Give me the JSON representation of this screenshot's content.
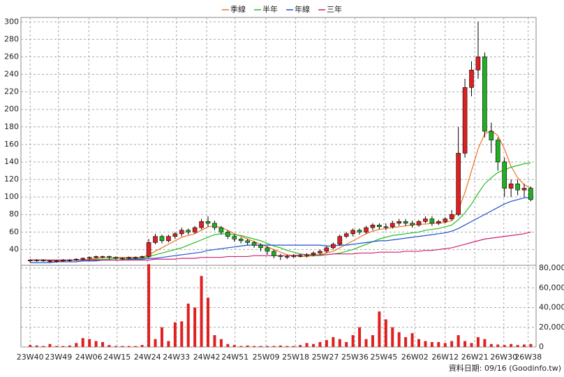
{
  "chart_data": {
    "type": "candlestick",
    "legend": "top",
    "grid": true,
    "up_color": "#e02020",
    "down_color": "#20b020",
    "xlim": [
      -1.4,
      76.8
    ],
    "xticks": [
      {
        "value": 0,
        "label": "23W40"
      },
      {
        "value": 4.3,
        "label": "23W49"
      },
      {
        "value": 8.9,
        "label": "24W06"
      },
      {
        "value": 13.2,
        "label": "24W15"
      },
      {
        "value": 17.8,
        "label": "24W24"
      },
      {
        "value": 22.2,
        "label": "24W33"
      },
      {
        "value": 26.8,
        "label": "24W42"
      },
      {
        "value": 31.1,
        "label": "24W51"
      },
      {
        "value": 35.8,
        "label": "25W09"
      },
      {
        "value": 40.3,
        "label": "25W18"
      },
      {
        "value": 44.8,
        "label": "25W27"
      },
      {
        "value": 49.3,
        "label": "25W36"
      },
      {
        "value": 53.7,
        "label": "25W45"
      },
      {
        "value": 58.4,
        "label": "26W02"
      },
      {
        "value": 63,
        "label": "26W12"
      },
      {
        "value": 67.5,
        "label": "26W21"
      },
      {
        "value": 71.9,
        "label": "26W30"
      },
      {
        "value": 75.6,
        "label": "26W38"
      }
    ],
    "ylim": [
      22,
      305
    ],
    "yticks": [
      40,
      60,
      80,
      100,
      120,
      140,
      160,
      180,
      200,
      220,
      240,
      260,
      280,
      300
    ],
    "open": [
      27,
      28,
      28,
      27,
      27,
      27,
      28,
      28,
      29,
      30,
      31,
      32,
      32,
      31,
      30,
      30,
      31,
      31,
      32,
      48,
      55,
      50,
      55,
      58,
      62,
      60,
      65,
      72,
      70,
      65,
      60,
      55,
      52,
      50,
      48,
      45,
      42,
      38,
      33,
      32,
      32,
      33,
      33,
      34,
      36,
      38,
      42,
      46,
      55,
      58,
      62,
      60,
      65,
      68,
      66,
      66,
      70,
      72,
      70,
      68,
      72,
      75,
      70,
      72,
      75,
      80,
      150,
      225,
      245,
      260,
      175,
      165,
      140,
      110,
      115,
      108,
      110
    ],
    "high": [
      29,
      29,
      29,
      28,
      28,
      29,
      29,
      30,
      31,
      32,
      33,
      33,
      33,
      32,
      31,
      32,
      32,
      33,
      52,
      58,
      57,
      57,
      60,
      65,
      64,
      67,
      75,
      78,
      73,
      67,
      62,
      57,
      54,
      52,
      50,
      47,
      44,
      40,
      35,
      34,
      35,
      35,
      36,
      38,
      40,
      44,
      48,
      57,
      60,
      64,
      64,
      67,
      70,
      70,
      70,
      73,
      75,
      75,
      73,
      74,
      78,
      78,
      74,
      77,
      85,
      180,
      235,
      255,
      300,
      265,
      185,
      168,
      145,
      120,
      120,
      115,
      112
    ],
    "low": [
      25,
      26,
      26,
      25,
      25,
      26,
      26,
      27,
      28,
      28,
      30,
      30,
      29,
      28,
      28,
      29,
      29,
      30,
      30,
      46,
      47,
      48,
      52,
      55,
      57,
      58,
      63,
      66,
      62,
      57,
      52,
      49,
      47,
      45,
      42,
      38,
      34,
      30,
      28,
      29,
      30,
      31,
      31,
      32,
      34,
      36,
      40,
      44,
      53,
      55,
      57,
      58,
      62,
      63,
      62,
      64,
      67,
      67,
      65,
      66,
      70,
      67,
      68,
      70,
      73,
      78,
      145,
      215,
      235,
      168,
      150,
      130,
      100,
      100,
      102,
      100,
      95
    ],
    "close": [
      28,
      28,
      27,
      27,
      27,
      28,
      28,
      29,
      30,
      31,
      32,
      32,
      31,
      30,
      30,
      31,
      31,
      32,
      48,
      55,
      50,
      55,
      58,
      62,
      60,
      65,
      72,
      70,
      65,
      60,
      55,
      52,
      50,
      48,
      45,
      42,
      38,
      33,
      32,
      32,
      33,
      33,
      34,
      36,
      38,
      42,
      46,
      55,
      58,
      62,
      60,
      65,
      68,
      66,
      66,
      70,
      72,
      70,
      68,
      72,
      75,
      70,
      72,
      75,
      80,
      150,
      225,
      245,
      260,
      175,
      165,
      140,
      110,
      115,
      108,
      110,
      97
    ],
    "volume": {
      "color": "#e02020",
      "ylim": [
        0,
        80000
      ],
      "yticks": [
        0,
        {
          "value": 20000,
          "label": "20,000"
        },
        {
          "value": 40000,
          "label": "40,000"
        },
        {
          "value": 60000,
          "label": "60,000"
        },
        {
          "value": 80000,
          "label": "80,000"
        }
      ],
      "values": [
        2000,
        1500,
        1000,
        3000,
        1000,
        1000,
        1500,
        4000,
        9000,
        8000,
        6000,
        5000,
        2000,
        1000,
        1000,
        1000,
        1000,
        2000,
        84000,
        8000,
        20000,
        6000,
        25000,
        26000,
        44000,
        40000,
        72000,
        50000,
        12000,
        8000,
        3000,
        2000,
        1000,
        1500,
        1000,
        1000,
        1000,
        1000,
        1500,
        1000,
        1000,
        2000,
        4000,
        3000,
        5000,
        7000,
        10000,
        8000,
        5000,
        12000,
        20000,
        8000,
        12000,
        36000,
        28000,
        20000,
        15000,
        10000,
        14000,
        8000,
        6000,
        5000,
        5000,
        4000,
        6000,
        12000,
        6000,
        4000,
        10000,
        8000,
        3000,
        2500,
        2000,
        3000,
        2000,
        2500,
        3000
      ]
    },
    "series": [
      {
        "name": "季線",
        "color": "#f07020",
        "values": [
          28,
          28,
          28,
          27,
          27,
          27,
          28,
          28,
          28,
          29,
          30,
          31,
          31,
          31,
          31,
          31,
          31,
          31,
          34,
          38,
          42,
          46,
          50,
          54,
          56,
          58,
          62,
          66,
          67,
          65,
          62,
          58,
          55,
          52,
          49,
          46,
          43,
          40,
          37,
          34,
          33,
          32,
          32,
          33,
          34,
          36,
          38,
          42,
          46,
          50,
          54,
          58,
          61,
          63,
          64,
          65,
          66,
          67,
          68,
          69,
          69,
          70,
          70,
          71,
          73,
          85,
          105,
          130,
          155,
          172,
          176,
          170,
          155,
          135,
          122,
          114,
          110
        ]
      },
      {
        "name": "半年",
        "color": "#20c020",
        "values": [
          28,
          28,
          28,
          28,
          28,
          28,
          28,
          28,
          28,
          28,
          29,
          29,
          29,
          30,
          30,
          30,
          30,
          30,
          32,
          34,
          36,
          38,
          40,
          42,
          45,
          48,
          51,
          54,
          57,
          58,
          58,
          57,
          56,
          54,
          52,
          50,
          47,
          44,
          42,
          39,
          37,
          35,
          34,
          33,
          33,
          34,
          35,
          36,
          38,
          40,
          43,
          46,
          49,
          52,
          54,
          56,
          57,
          58,
          59,
          60,
          62,
          63,
          64,
          66,
          68,
          74,
          82,
          92,
          104,
          115,
          122,
          128,
          131,
          134,
          136,
          138,
          139
        ]
      },
      {
        "name": "年線",
        "color": "#2050d0",
        "values": [
          25,
          25,
          25,
          25,
          26,
          26,
          26,
          26,
          27,
          27,
          27,
          28,
          28,
          28,
          28,
          29,
          29,
          29,
          30,
          30,
          31,
          32,
          33,
          34,
          35,
          36,
          37,
          39,
          40,
          41,
          42,
          43,
          44,
          45,
          45,
          45,
          45,
          45,
          45,
          45,
          45,
          45,
          45,
          45,
          45,
          44,
          44,
          45,
          45,
          46,
          47,
          48,
          49,
          50,
          50,
          51,
          52,
          53,
          54,
          55,
          56,
          57,
          58,
          59,
          61,
          64,
          68,
          72,
          76,
          80,
          84,
          88,
          92,
          95,
          97,
          99,
          100
        ]
      },
      {
        "name": "三年",
        "color": "#d02070",
        "values": [
          28,
          28,
          28,
          28,
          28,
          28,
          28,
          28,
          28,
          28,
          28,
          28,
          28,
          28,
          28,
          28,
          28,
          28,
          28,
          29,
          29,
          29,
          29,
          30,
          30,
          30,
          31,
          31,
          31,
          31,
          32,
          32,
          32,
          32,
          33,
          33,
          33,
          33,
          33,
          33,
          33,
          34,
          34,
          34,
          34,
          34,
          35,
          35,
          35,
          35,
          36,
          36,
          36,
          37,
          37,
          37,
          37,
          38,
          38,
          38,
          39,
          39,
          40,
          41,
          42,
          44,
          46,
          48,
          50,
          52,
          53,
          54,
          55,
          56,
          57,
          58,
          60
        ]
      }
    ],
    "footer": "資料日期: 09/16 (Goodinfo.tw)"
  }
}
